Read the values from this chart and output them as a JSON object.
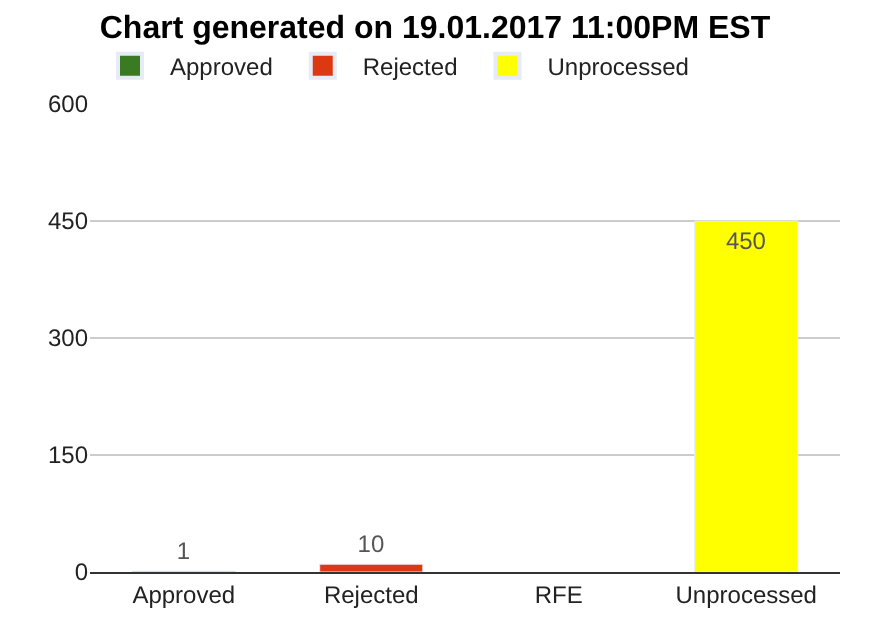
{
  "chart_data": {
    "type": "bar",
    "title": "Chart generated on 19.01.2017 11:00PM EST",
    "categories": [
      "Approved",
      "Rejected",
      "RFE",
      "Unprocessed"
    ],
    "series": [
      {
        "name": "Approved",
        "color": "#3a7a23",
        "values": [
          1,
          null,
          null,
          null
        ],
        "value_labels": [
          "1",
          null,
          null,
          null
        ]
      },
      {
        "name": "Rejected",
        "color": "#dc3912",
        "values": [
          null,
          10,
          null,
          null
        ],
        "value_labels": [
          null,
          "10",
          null,
          null
        ]
      },
      {
        "name": "Unprocessed",
        "color": "#ffff00",
        "values": [
          null,
          null,
          null,
          450
        ],
        "value_labels": [
          null,
          null,
          null,
          "450"
        ]
      }
    ],
    "ylim": [
      0,
      600
    ],
    "yticks": [
      0,
      150,
      300,
      450,
      600
    ],
    "grid": "y",
    "legend": "top left"
  }
}
